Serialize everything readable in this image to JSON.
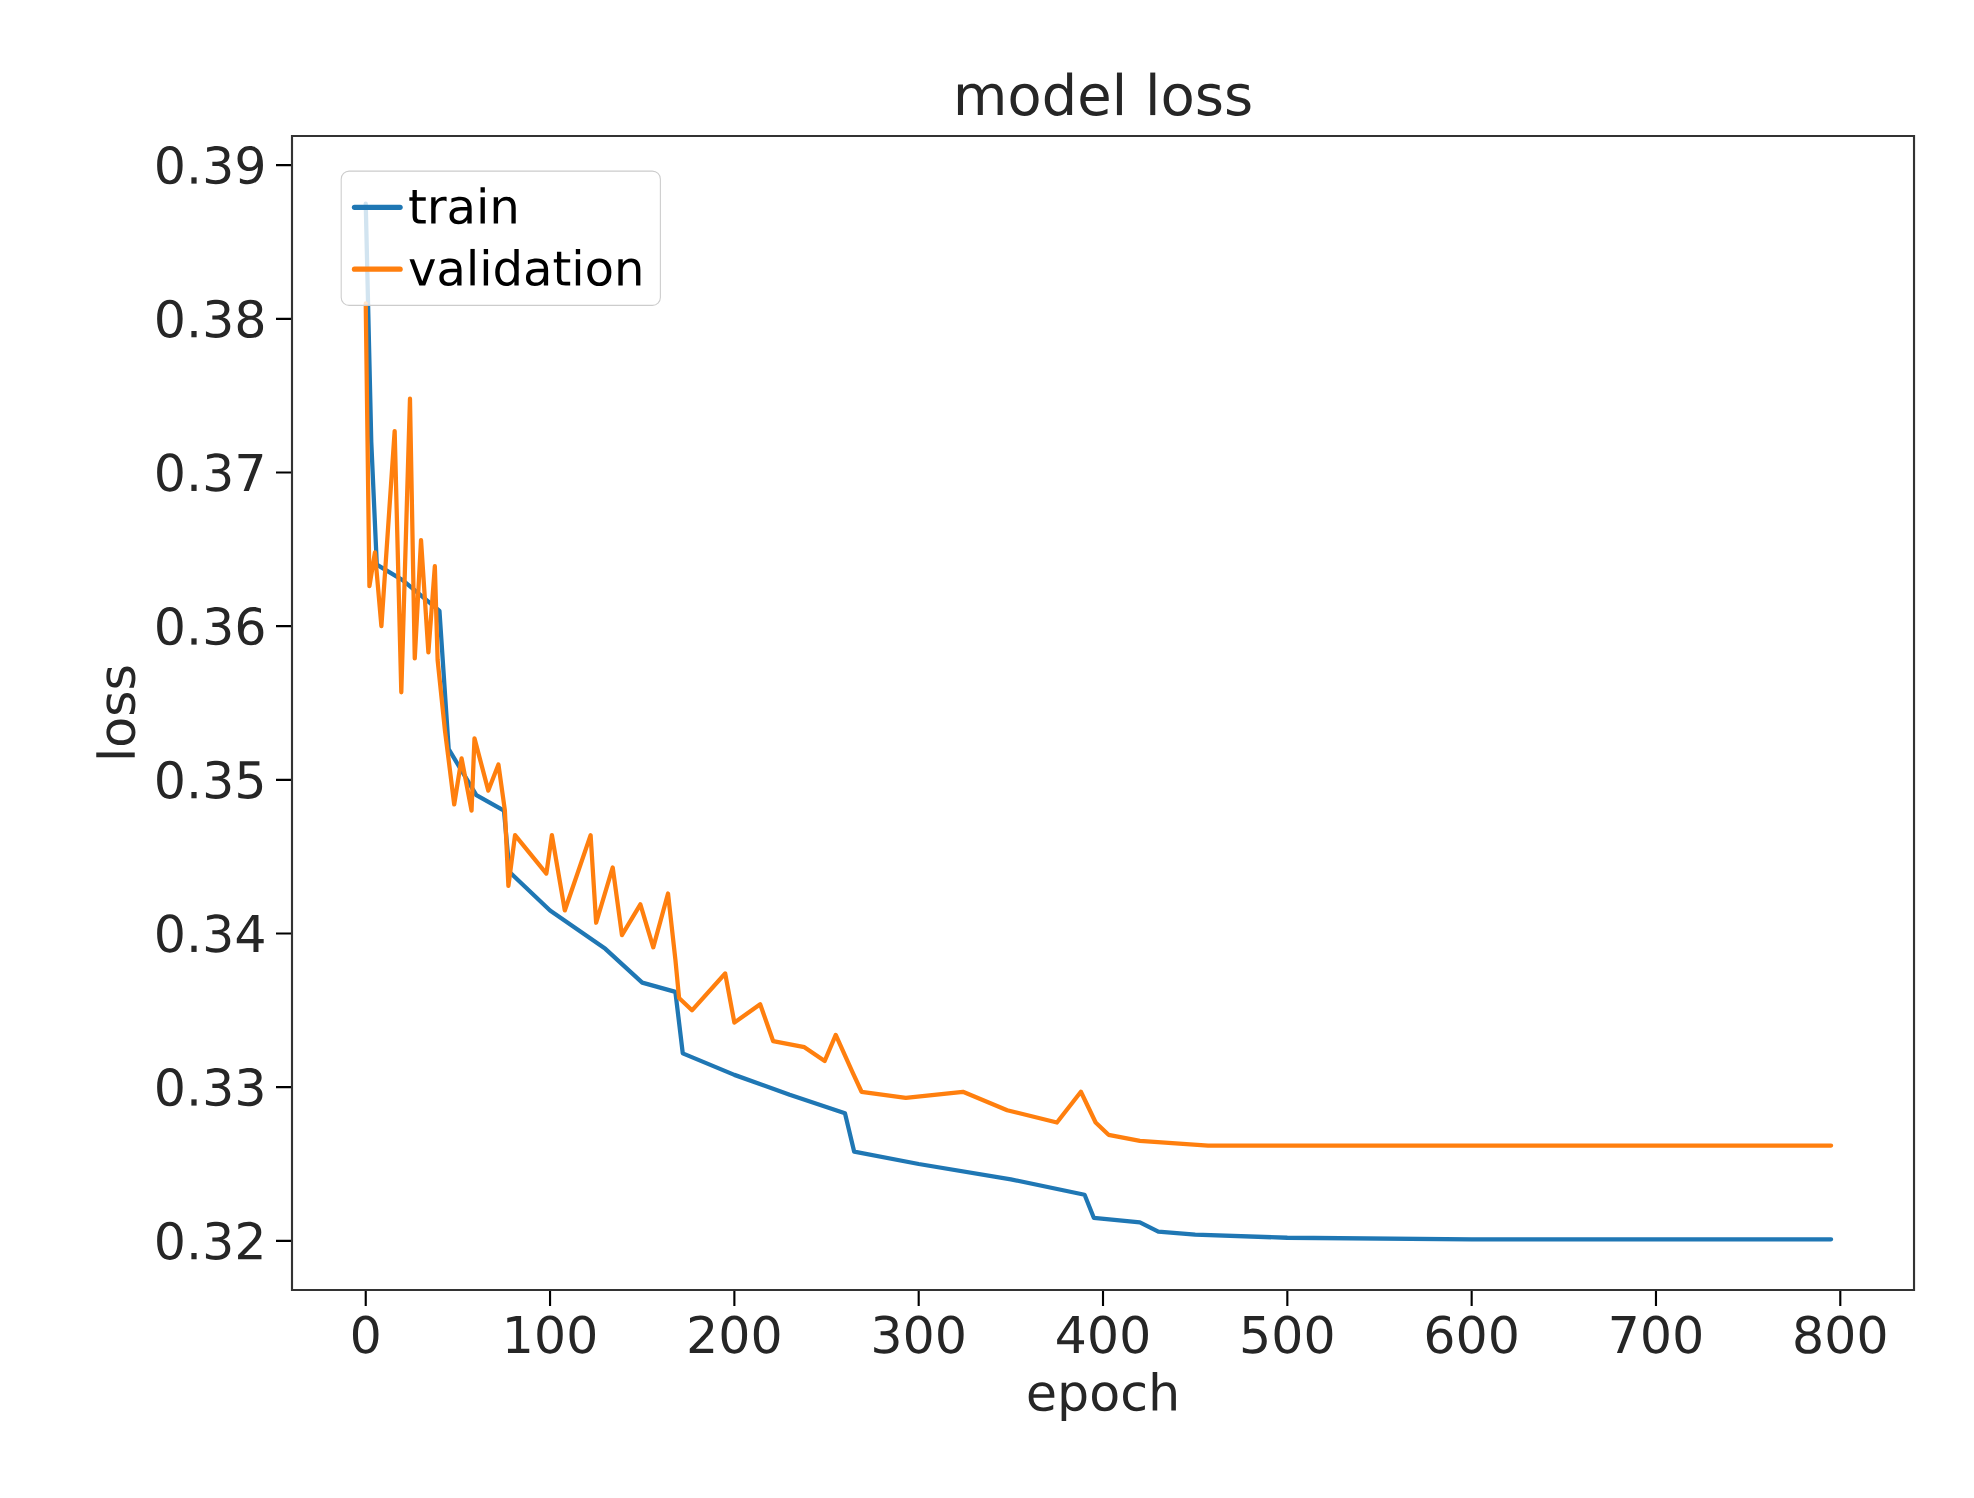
{
  "chart_data": {
    "type": "line",
    "title": "model loss",
    "xlabel": "epoch",
    "ylabel": "loss",
    "xlim": [
      -40,
      840
    ],
    "ylim": [
      0.3168,
      0.3919
    ],
    "xticks": [
      0,
      100,
      200,
      300,
      400,
      500,
      600,
      700,
      800
    ],
    "yticks": [
      0.32,
      0.33,
      0.34,
      0.35,
      0.36,
      0.37,
      0.38,
      0.39
    ],
    "grid": false,
    "legend": "top left",
    "line_style": "solid",
    "marker": "none",
    "series": [
      {
        "name": "train",
        "color": "#1f77b4",
        "x": [
          0,
          3,
          6,
          20,
          40,
          45,
          60,
          75,
          78,
          100,
          130,
          150,
          168,
          172,
          200,
          230,
          260,
          265,
          300,
          350,
          390,
          395,
          420,
          430,
          450,
          500,
          600,
          795
        ],
        "values": [
          0.3875,
          0.372,
          0.364,
          0.363,
          0.361,
          0.352,
          0.349,
          0.348,
          0.344,
          0.3415,
          0.339,
          0.3368,
          0.3362,
          0.3322,
          0.3308,
          0.3295,
          0.3283,
          0.3258,
          0.325,
          0.324,
          0.323,
          0.3215,
          0.3212,
          0.3206,
          0.3204,
          0.3202,
          0.3201,
          0.3201
        ]
      },
      {
        "name": "validation",
        "color": "#ff7f0e",
        "x": [
          0,
          2,
          5,
          8.5,
          15.7,
          19.3,
          24,
          26.6,
          30,
          34,
          37.5,
          39,
          43,
          48,
          52,
          57.4,
          59,
          66.5,
          72,
          75.5,
          77.4,
          81,
          98,
          101,
          108,
          122,
          125,
          134,
          139,
          149,
          156,
          164,
          168,
          170,
          177,
          195,
          200,
          214,
          221,
          238,
          249,
          255,
          264,
          269,
          293,
          324,
          348,
          375,
          388,
          396,
          403,
          420,
          457,
          553,
          795
        ],
        "values": [
          0.381,
          0.3626,
          0.3648,
          0.36,
          0.3727,
          0.3557,
          0.3748,
          0.3579,
          0.3656,
          0.3583,
          0.3639,
          0.3578,
          0.3532,
          0.3484,
          0.3514,
          0.348,
          0.3527,
          0.3493,
          0.351,
          0.348,
          0.3431,
          0.3464,
          0.3439,
          0.3464,
          0.3415,
          0.3464,
          0.3407,
          0.3443,
          0.3399,
          0.3419,
          0.3391,
          0.3426,
          0.3383,
          0.3358,
          0.335,
          0.3374,
          0.3342,
          0.3354,
          0.333,
          0.3326,
          0.3317,
          0.3334,
          0.331,
          0.3297,
          0.3293,
          0.3297,
          0.3285,
          0.3277,
          0.3297,
          0.3277,
          0.3269,
          0.3265,
          0.3262,
          0.3262,
          0.3262
        ]
      }
    ]
  }
}
